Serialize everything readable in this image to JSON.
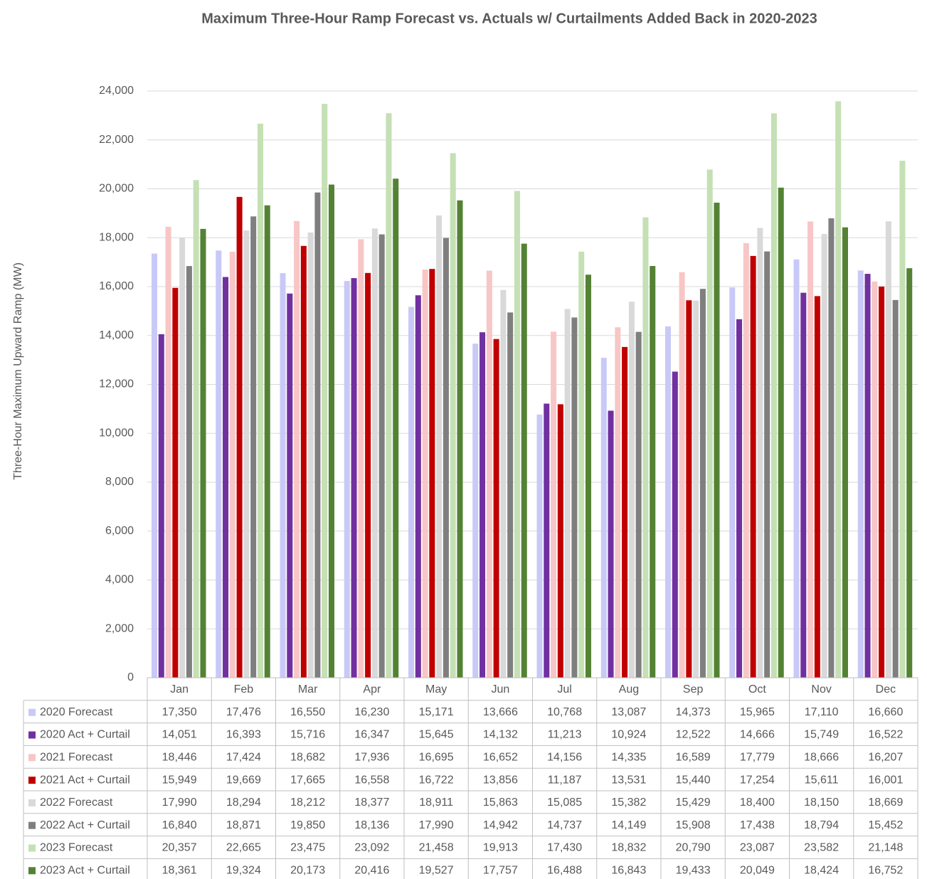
{
  "chart_data": {
    "type": "bar",
    "title": "Maximum Three-Hour Ramp Forecast vs. Actuals w/ Curtailments Added Back in 2020-2023",
    "y_label": "Three-Hour Maximum Upward Ramp (MW)",
    "categories": [
      "Jan",
      "Feb",
      "Mar",
      "Apr",
      "May",
      "Jun",
      "Jul",
      "Aug",
      "Sep",
      "Oct",
      "Nov",
      "Dec"
    ],
    "ylim": [
      0,
      24000
    ],
    "yticks": [
      0,
      {
        "value": 2000,
        "label": "2,000"
      },
      {
        "value": 4000,
        "label": "4,000"
      },
      {
        "value": 6000,
        "label": "6,000"
      },
      {
        "value": 8000,
        "label": "8,000"
      },
      {
        "value": 10000,
        "label": "10,000"
      },
      {
        "value": 12000,
        "label": "12,000"
      },
      {
        "value": 14000,
        "label": "14,000"
      },
      {
        "value": 16000,
        "label": "16,000"
      },
      {
        "value": 18000,
        "label": "18,000"
      },
      {
        "value": 20000,
        "label": "20,000"
      },
      {
        "value": 22000,
        "label": "22,000"
      },
      {
        "value": 24000,
        "label": "24,000"
      }
    ],
    "grid": true,
    "series": [
      {
        "name": "2020 Forecast",
        "color": "#c9c9f7",
        "values": [
          17350,
          17476,
          16550,
          16230,
          15171,
          13666,
          10768,
          13087,
          14373,
          15965,
          17110,
          16660
        ],
        "value_labels": [
          "17,350",
          "17,476",
          "16,550",
          "16,230",
          "15,171",
          "13,666",
          "10,768",
          "13,087",
          "14,373",
          "15,965",
          "17,110",
          "16,660"
        ]
      },
      {
        "name": "2020 Act + Curtail",
        "color": "#7030a0",
        "values": [
          14051,
          16393,
          15716,
          16347,
          15645,
          14132,
          11213,
          10924,
          12522,
          14666,
          15749,
          16522
        ],
        "value_labels": [
          "14,051",
          "16,393",
          "15,716",
          "16,347",
          "15,645",
          "14,132",
          "11,213",
          "10,924",
          "12,522",
          "14,666",
          "15,749",
          "16,522"
        ]
      },
      {
        "name": "2021 Forecast",
        "color": "#f8c6c6",
        "values": [
          18446,
          17424,
          18682,
          17936,
          16695,
          16652,
          14156,
          14335,
          16589,
          17779,
          18666,
          16207
        ],
        "value_labels": [
          "18,446",
          "17,424",
          "18,682",
          "17,936",
          "16,695",
          "16,652",
          "14,156",
          "14,335",
          "16,589",
          "17,779",
          "18,666",
          "16,207"
        ]
      },
      {
        "name": "2021 Act + Curtail",
        "color": "#c00000",
        "values": [
          15949,
          19669,
          17665,
          16558,
          16722,
          13856,
          11187,
          13531,
          15440,
          17254,
          15611,
          16001
        ],
        "value_labels": [
          "15,949",
          "19,669",
          "17,665",
          "16,558",
          "16,722",
          "13,856",
          "11,187",
          "13,531",
          "15,440",
          "17,254",
          "15,611",
          "16,001"
        ]
      },
      {
        "name": "2022 Forecast",
        "color": "#d9d9d9",
        "values": [
          17990,
          18294,
          18212,
          18377,
          18911,
          15863,
          15085,
          15382,
          15429,
          18400,
          18150,
          18669
        ],
        "value_labels": [
          "17,990",
          "18,294",
          "18,212",
          "18,377",
          "18,911",
          "15,863",
          "15,085",
          "15,382",
          "15,429",
          "18,400",
          "18,150",
          "18,669"
        ]
      },
      {
        "name": "2022 Act + Curtail",
        "color": "#7f7f7f",
        "values": [
          16840,
          18871,
          19850,
          18136,
          17990,
          14942,
          14737,
          14149,
          15908,
          17438,
          18794,
          15452
        ],
        "value_labels": [
          "16,840",
          "18,871",
          "19,850",
          "18,136",
          "17,990",
          "14,942",
          "14,737",
          "14,149",
          "15,908",
          "17,438",
          "18,794",
          "15,452"
        ]
      },
      {
        "name": "2023 Forecast",
        "color": "#c5e0b4",
        "values": [
          20357,
          22665,
          23475,
          23092,
          21458,
          19913,
          17430,
          18832,
          20790,
          23087,
          23582,
          21148
        ],
        "value_labels": [
          "20,357",
          "22,665",
          "23,475",
          "23,092",
          "21,458",
          "19,913",
          "17,430",
          "18,832",
          "20,790",
          "23,087",
          "23,582",
          "21,148"
        ]
      },
      {
        "name": "2023 Act + Curtail",
        "color": "#548235",
        "values": [
          18361,
          19324,
          20173,
          20416,
          19527,
          17757,
          16488,
          16843,
          19433,
          20049,
          18424,
          16752
        ],
        "value_labels": [
          "18,361",
          "19,324",
          "20,173",
          "20,416",
          "19,527",
          "17,757",
          "16,488",
          "16,843",
          "19,433",
          "20,049",
          "18,424",
          "16,752"
        ]
      }
    ]
  }
}
